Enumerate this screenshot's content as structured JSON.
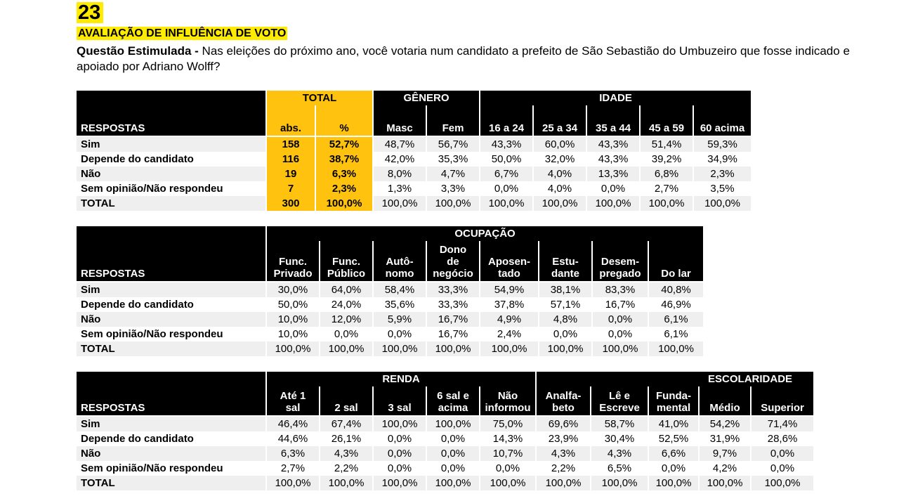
{
  "header": {
    "page_number": "23",
    "section_title": "AVALIAÇÃO DE INFLUÊNCIA DE VOTO",
    "question_label": "Questão Estimulada -",
    "question_text": " Nas eleições do próximo ano, você votaria num candidato a prefeito de São Sebastião do Umbuzeiro que fosse indicado e apoiado por Adriano Wolff?"
  },
  "table1": {
    "respostas_label": "RESPOSTAS",
    "group_total": "TOTAL",
    "group_genero": "GÊNERO",
    "group_idade": "IDADE",
    "columns": [
      "abs.",
      "%",
      "Masc",
      "Fem",
      "16 a 24",
      "25 a 34",
      "35 a 44",
      "45 a 59",
      "60 acima"
    ],
    "rows": [
      {
        "label": "Sim",
        "values": [
          "158",
          "52,7%",
          "48,7%",
          "56,7%",
          "43,3%",
          "60,0%",
          "43,3%",
          "51,4%",
          "59,3%"
        ]
      },
      {
        "label": "Depende do candidato",
        "values": [
          "116",
          "38,7%",
          "42,0%",
          "35,3%",
          "50,0%",
          "32,0%",
          "43,3%",
          "39,2%",
          "34,9%"
        ]
      },
      {
        "label": "Não",
        "values": [
          "19",
          "6,3%",
          "8,0%",
          "4,7%",
          "6,7%",
          "4,0%",
          "13,3%",
          "6,8%",
          "2,3%"
        ]
      },
      {
        "label": "Sem opinião/Não respondeu",
        "values": [
          "7",
          "2,3%",
          "1,3%",
          "3,3%",
          "0,0%",
          "4,0%",
          "0,0%",
          "2,7%",
          "3,5%"
        ]
      },
      {
        "label": "TOTAL",
        "values": [
          "300",
          "100,0%",
          "100,0%",
          "100,0%",
          "100,0%",
          "100,0%",
          "100,0%",
          "100,0%",
          "100,0%"
        ]
      }
    ]
  },
  "table2": {
    "respostas_label": "RESPOSTAS",
    "group_ocupacao": "OCUPAÇÃO",
    "columns": [
      [
        "Func.",
        "Privado"
      ],
      [
        "Func.",
        "Público"
      ],
      [
        "Autô-",
        "nomo"
      ],
      [
        "Dono",
        "de",
        "negócio"
      ],
      [
        "Aposen-",
        "tado"
      ],
      [
        "Estu-",
        "dante"
      ],
      [
        "Desem-",
        "pregado"
      ],
      [
        "Do lar"
      ]
    ],
    "rows": [
      {
        "label": "Sim",
        "values": [
          "30,0%",
          "64,0%",
          "58,4%",
          "33,3%",
          "54,9%",
          "38,1%",
          "83,3%",
          "40,8%"
        ]
      },
      {
        "label": "Depende do candidato",
        "values": [
          "50,0%",
          "24,0%",
          "35,6%",
          "33,3%",
          "37,8%",
          "57,1%",
          "16,7%",
          "46,9%"
        ]
      },
      {
        "label": "Não",
        "values": [
          "10,0%",
          "12,0%",
          "5,9%",
          "16,7%",
          "4,9%",
          "4,8%",
          "0,0%",
          "6,1%"
        ]
      },
      {
        "label": "Sem opinião/Não respondeu",
        "values": [
          "10,0%",
          "0,0%",
          "0,0%",
          "16,7%",
          "2,4%",
          "0,0%",
          "0,0%",
          "6,1%"
        ]
      },
      {
        "label": "TOTAL",
        "values": [
          "100,0%",
          "100,0%",
          "100,0%",
          "100,0%",
          "100,0%",
          "100,0%",
          "100,0%",
          "100,0%"
        ]
      }
    ]
  },
  "table3": {
    "respostas_label": "RESPOSTAS",
    "group_renda": "RENDA",
    "group_escolaridade": "ESCOLARIDADE",
    "columns": [
      [
        "Até 1",
        "sal"
      ],
      [
        "2 sal"
      ],
      [
        "3 sal"
      ],
      [
        "6 sal e",
        "acima"
      ],
      [
        "Não",
        "informou"
      ],
      [
        "Analfa-",
        "beto"
      ],
      [
        "Lê e",
        "Escreve"
      ],
      [
        "Funda-",
        "mental"
      ],
      [
        "Médio"
      ],
      [
        "Superior"
      ]
    ],
    "rows": [
      {
        "label": "Sim",
        "values": [
          "46,4%",
          "67,4%",
          "100,0%",
          "100,0%",
          "75,0%",
          "69,6%",
          "58,7%",
          "41,0%",
          "54,2%",
          "71,4%"
        ]
      },
      {
        "label": "Depende do candidato",
        "values": [
          "44,6%",
          "26,1%",
          "0,0%",
          "0,0%",
          "14,3%",
          "23,9%",
          "30,4%",
          "52,5%",
          "31,9%",
          "28,6%"
        ]
      },
      {
        "label": "Não",
        "values": [
          "6,3%",
          "4,3%",
          "0,0%",
          "0,0%",
          "10,7%",
          "4,3%",
          "4,3%",
          "6,6%",
          "9,7%",
          "0,0%"
        ]
      },
      {
        "label": "Sem opinião/Não respondeu",
        "values": [
          "2,7%",
          "2,2%",
          "0,0%",
          "0,0%",
          "0,0%",
          "2,2%",
          "6,5%",
          "0,0%",
          "4,2%",
          "0,0%"
        ]
      },
      {
        "label": "TOTAL",
        "values": [
          "100,0%",
          "100,0%",
          "100,0%",
          "100,0%",
          "100,0%",
          "100,0%",
          "100,0%",
          "100,0%",
          "100,0%",
          "100,0%"
        ]
      }
    ]
  }
}
